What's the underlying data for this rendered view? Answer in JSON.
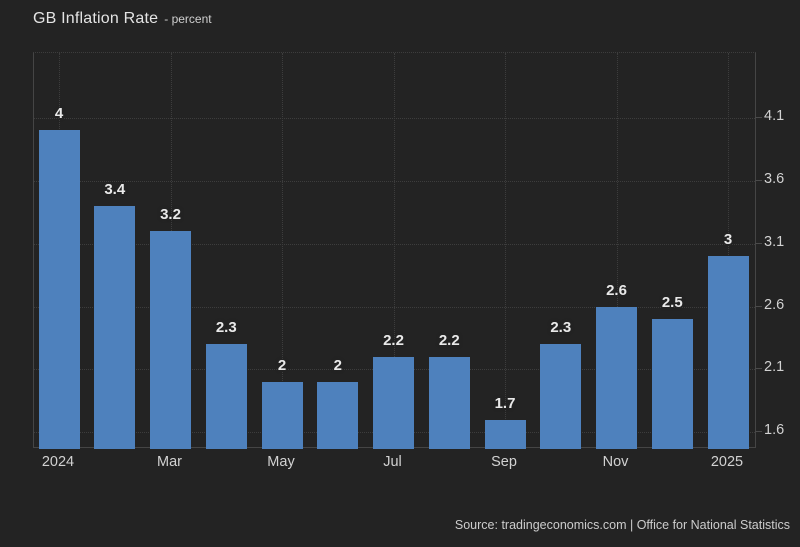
{
  "header": {
    "title": "GB Inflation Rate",
    "subtitle": "- percent"
  },
  "footer": {
    "source": "Source: tradingeconomics.com | Office for National Statistics"
  },
  "colors": {
    "background": "#232323",
    "bar": "#4e81bd",
    "gridline": "#3d3d3d",
    "axis_line": "#454545",
    "label_text": "#d2d2d2",
    "value_label_text": "#e9e9e9"
  },
  "chart_data": {
    "type": "bar",
    "title": "GB Inflation Rate",
    "ylabel": "percent",
    "values": [
      4,
      3.4,
      3.2,
      2.3,
      2,
      2,
      2.2,
      2.2,
      1.7,
      2.3,
      2.6,
      2.5,
      3
    ],
    "bar_labels": [
      "4",
      "3.4",
      "3.2",
      "2.3",
      "2",
      "2",
      "2.2",
      "2.2",
      "1.7",
      "2.3",
      "2.6",
      "2.5",
      "3"
    ],
    "x_tick_labels": [
      "2024",
      "Mar",
      "May",
      "Jul",
      "Sep",
      "Nov",
      "2025"
    ],
    "x_tick_indices": [
      0,
      2,
      4,
      6,
      8,
      10,
      12
    ],
    "yticks": [
      1.6,
      2.1,
      2.6,
      3.1,
      3.6,
      4.1
    ],
    "ytick_labels": [
      "1.6",
      "2.1",
      "2.6",
      "3.1",
      "3.6",
      "4.1"
    ],
    "ylim": [
      1.469,
      4.612
    ],
    "grid": true,
    "grid_style": "dotted",
    "legend": false,
    "y_axis_side": "right"
  }
}
